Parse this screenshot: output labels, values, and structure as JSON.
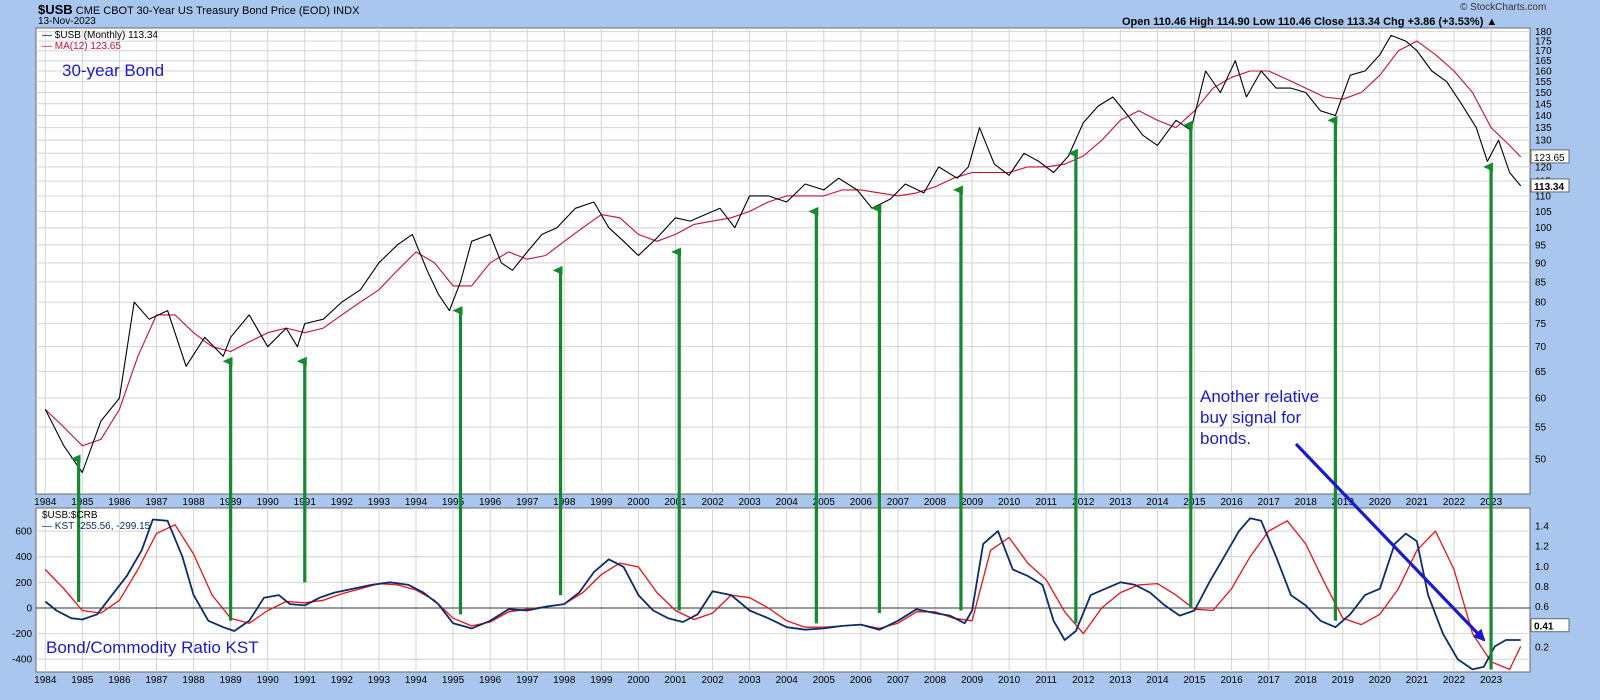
{
  "header": {
    "symbol": "$USB",
    "description": "CME CBOT 30-Year US Treasury Bond Price (EOD)",
    "exchange": "INDX",
    "date": "13-Nov-2023",
    "ohlc": "Open 110.46  High 114.90  Low 110.46  Close 113.34  Chg +3.86 (+3.53%) ▲",
    "watermark": "© StockCharts.com"
  },
  "legend_top": {
    "price": "$USB (Monthly) 113.34",
    "ma": "MA(12) 123.65"
  },
  "legend_bottom": {
    "ratio": "$USB:$CRB",
    "kst": "KST -255.56, -299.15"
  },
  "annotations": {
    "top_title": "30-year Bond",
    "bottom_title": "Bond/Commodity Ratio KST",
    "signal_line1": "Another relative",
    "signal_line2": "buy signal for",
    "signal_line3": "bonds."
  },
  "colors": {
    "background": "#a9c7ee",
    "panel": "#ffffff",
    "grid": "#d4d4d4",
    "price": "#000000",
    "ma": "#c8102e",
    "kst": "#0c2d6b",
    "kst_signal": "#e8121a",
    "arrow_green": "#138a2d",
    "arrow_blue": "#1a1acc",
    "annotation": "#1a1acc"
  },
  "chart_data": [
    {
      "type": "line",
      "title": "$USB CME CBOT 30-Year US Treasury Bond Price (EOD)",
      "x_ticks": [
        "1984",
        "1985",
        "1986",
        "1987",
        "1988",
        "1989",
        "1990",
        "1991",
        "1992",
        "1993",
        "1994",
        "1995",
        "1996",
        "1997",
        "1998",
        "1999",
        "2000",
        "2001",
        "2002",
        "2003",
        "2004",
        "2005",
        "2006",
        "2007",
        "2008",
        "2009",
        "2010",
        "2011",
        "2012",
        "2013",
        "2014",
        "2015",
        "2016",
        "2017",
        "2018",
        "2019",
        "2020",
        "2021",
        "2022",
        "2023"
      ],
      "y_ticks": [
        50,
        55,
        60,
        65,
        70,
        75,
        80,
        85,
        90,
        95,
        100,
        105,
        110,
        115,
        120,
        125,
        130,
        135,
        140,
        145,
        150,
        155,
        160,
        165,
        170,
        175,
        180
      ],
      "ylim": [
        45,
        182
      ],
      "log_scale": true,
      "grid": true,
      "last_price_label": "113.34",
      "last_ma_label": "123.65",
      "series": [
        {
          "name": "$USB (Monthly)",
          "x": [
            1984.0,
            1984.5,
            1985.0,
            1985.5,
            1986.0,
            1986.4,
            1986.8,
            1987.3,
            1987.8,
            1988.3,
            1988.8,
            1989.0,
            1989.5,
            1990.0,
            1990.5,
            1990.8,
            1991.0,
            1991.5,
            1992.0,
            1992.5,
            1993.0,
            1993.5,
            1993.9,
            1994.3,
            1994.6,
            1994.9,
            1995.2,
            1995.5,
            1996.0,
            1996.3,
            1996.6,
            1997.0,
            1997.4,
            1997.8,
            1998.3,
            1998.8,
            1999.2,
            1999.6,
            2000.0,
            2000.5,
            2001.0,
            2001.4,
            2001.8,
            2002.2,
            2002.6,
            2003.0,
            2003.5,
            2004.0,
            2004.5,
            2005.0,
            2005.4,
            2005.9,
            2006.3,
            2006.8,
            2007.2,
            2007.7,
            2008.1,
            2008.6,
            2008.9,
            2009.2,
            2009.6,
            2010.0,
            2010.4,
            2010.8,
            2011.2,
            2011.6,
            2012.0,
            2012.4,
            2012.8,
            2013.2,
            2013.6,
            2014.0,
            2014.5,
            2014.9,
            2015.3,
            2015.7,
            2016.1,
            2016.4,
            2016.8,
            2017.2,
            2017.6,
            2018.0,
            2018.4,
            2018.8,
            2019.2,
            2019.6,
            2020.0,
            2020.3,
            2020.7,
            2021.0,
            2021.4,
            2021.8,
            2022.2,
            2022.6,
            2022.9,
            2023.2,
            2023.5,
            2023.8
          ],
          "values": [
            58,
            52,
            48,
            56,
            60,
            80,
            76,
            78,
            66,
            72,
            68,
            72,
            77,
            70,
            74,
            70,
            75,
            76,
            80,
            83,
            90,
            95,
            98,
            88,
            82,
            78,
            85,
            96,
            98,
            90,
            88,
            93,
            98,
            100,
            106,
            108,
            100,
            96,
            92,
            97,
            103,
            102,
            104,
            106,
            100,
            110,
            110,
            108,
            114,
            112,
            116,
            112,
            106,
            109,
            114,
            111,
            120,
            116,
            120,
            135,
            121,
            117,
            125,
            122,
            118,
            124,
            137,
            144,
            148,
            140,
            132,
            128,
            138,
            134,
            160,
            150,
            165,
            148,
            160,
            152,
            152,
            150,
            142,
            140,
            158,
            160,
            168,
            178,
            175,
            170,
            160,
            155,
            145,
            135,
            122,
            130,
            118,
            113.34
          ]
        },
        {
          "name": "MA(12)",
          "x": [
            1984.0,
            1984.5,
            1985.0,
            1985.5,
            1986.0,
            1986.5,
            1987.0,
            1987.5,
            1988.0,
            1988.5,
            1989.0,
            1989.5,
            1990.0,
            1990.5,
            1991.0,
            1991.5,
            1992.0,
            1992.5,
            1993.0,
            1993.5,
            1994.0,
            1994.5,
            1995.0,
            1995.5,
            1996.0,
            1996.5,
            1997.0,
            1997.5,
            1998.0,
            1998.5,
            1999.0,
            1999.5,
            2000.0,
            2000.5,
            2001.0,
            2001.5,
            2002.0,
            2002.5,
            2003.0,
            2003.5,
            2004.0,
            2004.5,
            2005.0,
            2005.5,
            2006.0,
            2006.5,
            2007.0,
            2007.5,
            2008.0,
            2008.5,
            2009.0,
            2009.5,
            2010.0,
            2010.5,
            2011.0,
            2011.5,
            2012.0,
            2012.5,
            2013.0,
            2013.5,
            2014.0,
            2014.5,
            2015.0,
            2015.5,
            2016.0,
            2016.5,
            2017.0,
            2017.5,
            2018.0,
            2018.5,
            2019.0,
            2019.5,
            2020.0,
            2020.5,
            2021.0,
            2021.5,
            2022.0,
            2022.5,
            2023.0,
            2023.5,
            2023.8
          ],
          "values": [
            58,
            55,
            52,
            53,
            58,
            68,
            77,
            77,
            73,
            70,
            69,
            71,
            73,
            74,
            73,
            74,
            77,
            80,
            83,
            88,
            93,
            90,
            84,
            84,
            90,
            93,
            91,
            92,
            96,
            100,
            104,
            103,
            98,
            96,
            98,
            101,
            102,
            103,
            105,
            108,
            110,
            110,
            110,
            112,
            112,
            111,
            110,
            111,
            113,
            116,
            118,
            118,
            118,
            120,
            120,
            121,
            124,
            130,
            138,
            142,
            138,
            135,
            142,
            152,
            157,
            160,
            160,
            156,
            152,
            148,
            147,
            150,
            158,
            170,
            175,
            168,
            160,
            150,
            135,
            128,
            123.65
          ]
        }
      ]
    },
    {
      "type": "line",
      "title": "$USB:$CRB",
      "x_ticks": [
        "1984",
        "1985",
        "1986",
        "1987",
        "1988",
        "1989",
        "1990",
        "1991",
        "1992",
        "1993",
        "1994",
        "1995",
        "1996",
        "1997",
        "1998",
        "1999",
        "2000",
        "2001",
        "2002",
        "2003",
        "2004",
        "2005",
        "2006",
        "2007",
        "2008",
        "2009",
        "2010",
        "2011",
        "2012",
        "2013",
        "2014",
        "2015",
        "2016",
        "2017",
        "2018",
        "2019",
        "2020",
        "2021",
        "2022",
        "2023"
      ],
      "y_ticks_left": [
        -400,
        -200,
        0,
        200,
        400,
        600
      ],
      "y_ticks_right": [
        0.2,
        0.4,
        0.6,
        0.8,
        1.0,
        1.2,
        1.4
      ],
      "ylim": [
        -500,
        780
      ],
      "grid": true,
      "ratio_label": "0.41",
      "series": [
        {
          "name": "KST",
          "x": [
            1984.0,
            1984.3,
            1984.7,
            1985.0,
            1985.4,
            1985.8,
            1986.2,
            1986.6,
            1986.9,
            1987.3,
            1987.7,
            1988.0,
            1988.4,
            1988.8,
            1989.1,
            1989.5,
            1989.9,
            1990.3,
            1990.6,
            1991.0,
            1991.4,
            1991.8,
            1992.3,
            1992.8,
            1993.3,
            1993.8,
            1994.2,
            1994.6,
            1995.0,
            1995.5,
            1996.0,
            1996.5,
            1997.0,
            1997.5,
            1998.0,
            1998.4,
            1998.8,
            1999.2,
            1999.6,
            2000.0,
            2000.4,
            2000.8,
            2001.2,
            2001.6,
            2002.0,
            2002.5,
            2003.0,
            2003.5,
            2004.0,
            2004.5,
            2005.0,
            2005.5,
            2006.0,
            2006.5,
            2007.0,
            2007.5,
            2008.0,
            2008.4,
            2008.8,
            2009.0,
            2009.3,
            2009.7,
            2010.1,
            2010.5,
            2010.9,
            2011.2,
            2011.5,
            2011.8,
            2012.2,
            2012.6,
            2013.0,
            2013.4,
            2013.8,
            2014.2,
            2014.6,
            2015.0,
            2015.4,
            2015.8,
            2016.2,
            2016.5,
            2016.8,
            2017.2,
            2017.6,
            2018.0,
            2018.4,
            2018.8,
            2019.2,
            2019.6,
            2020.0,
            2020.4,
            2020.7,
            2021.0,
            2021.3,
            2021.7,
            2022.1,
            2022.5,
            2022.8,
            2023.1,
            2023.4,
            2023.8
          ],
          "values": [
            50,
            -20,
            -80,
            -90,
            -50,
            100,
            250,
            450,
            690,
            680,
            400,
            100,
            -100,
            -150,
            -180,
            -100,
            80,
            100,
            30,
            20,
            80,
            120,
            150,
            180,
            200,
            180,
            120,
            30,
            -120,
            -160,
            -100,
            -10,
            -20,
            10,
            30,
            120,
            280,
            380,
            320,
            100,
            -20,
            -80,
            -110,
            -50,
            130,
            100,
            -20,
            -80,
            -150,
            -170,
            -160,
            -140,
            -130,
            -170,
            -100,
            -10,
            -40,
            -60,
            -120,
            -20,
            500,
            600,
            300,
            250,
            180,
            -100,
            -250,
            -180,
            100,
            150,
            200,
            180,
            120,
            20,
            -60,
            -20,
            200,
            400,
            600,
            700,
            680,
            400,
            100,
            20,
            -100,
            -150,
            -50,
            100,
            150,
            500,
            580,
            520,
            100,
            -200,
            -400,
            -480,
            -460,
            -300,
            -250,
            -250
          ]
        },
        {
          "name": "Signal",
          "x": [
            1984.0,
            1984.5,
            1985.0,
            1985.5,
            1986.0,
            1986.5,
            1987.0,
            1987.5,
            1988.0,
            1988.5,
            1989.0,
            1989.5,
            1990.0,
            1990.5,
            1991.0,
            1991.5,
            1992.0,
            1992.5,
            1993.0,
            1993.5,
            1994.0,
            1994.5,
            1995.0,
            1995.5,
            1996.0,
            1996.5,
            1997.0,
            1997.5,
            1998.0,
            1998.5,
            1999.0,
            1999.5,
            2000.0,
            2000.5,
            2001.0,
            2001.5,
            2002.0,
            2002.5,
            2003.0,
            2003.5,
            2004.0,
            2004.5,
            2005.0,
            2005.5,
            2006.0,
            2006.5,
            2007.0,
            2007.5,
            2008.0,
            2008.5,
            2009.0,
            2009.5,
            2010.0,
            2010.5,
            2011.0,
            2011.5,
            2012.0,
            2012.5,
            2013.0,
            2013.5,
            2014.0,
            2014.5,
            2015.0,
            2015.5,
            2016.0,
            2016.5,
            2017.0,
            2017.5,
            2018.0,
            2018.5,
            2019.0,
            2019.5,
            2020.0,
            2020.5,
            2021.0,
            2021.5,
            2022.0,
            2022.5,
            2023.0,
            2023.5,
            2023.8
          ],
          "values": [
            300,
            150,
            -20,
            -40,
            60,
            300,
            580,
            650,
            420,
            100,
            -80,
            -120,
            -20,
            50,
            40,
            60,
            110,
            150,
            190,
            180,
            140,
            60,
            -80,
            -140,
            -110,
            -30,
            -10,
            10,
            30,
            120,
            260,
            350,
            320,
            120,
            -20,
            -90,
            -40,
            100,
            80,
            0,
            -100,
            -150,
            -150,
            -140,
            -130,
            -160,
            -120,
            -30,
            -30,
            -80,
            -100,
            450,
            550,
            350,
            220,
            -30,
            -200,
            0,
            120,
            180,
            190,
            100,
            -10,
            -20,
            150,
            400,
            600,
            680,
            500,
            200,
            -80,
            -130,
            -50,
            150,
            450,
            600,
            300,
            -200,
            -420,
            -480,
            -300
          ]
        }
      ]
    }
  ],
  "arrows": [
    {
      "year": 1984.9,
      "from": 45,
      "to": 50
    },
    {
      "year": 1989.0,
      "from": -100,
      "to": 67
    },
    {
      "year": 1991.0,
      "from": 200,
      "to": 67
    },
    {
      "year": 1995.2,
      "from": -50,
      "to": 78
    },
    {
      "year": 1997.9,
      "from": 100,
      "to": 88
    },
    {
      "year": 2001.1,
      "from": -20,
      "to": 93
    },
    {
      "year": 2004.8,
      "from": -120,
      "to": 105
    },
    {
      "year": 2006.5,
      "from": -40,
      "to": 106
    },
    {
      "year": 2008.7,
      "from": -20,
      "to": 112
    },
    {
      "year": 2011.8,
      "from": -120,
      "to": 125
    },
    {
      "year": 2014.9,
      "from": 0,
      "to": 136
    },
    {
      "year": 2018.8,
      "from": -100,
      "to": 138
    },
    {
      "year": 2023.0,
      "from": -480,
      "to": 120
    }
  ]
}
